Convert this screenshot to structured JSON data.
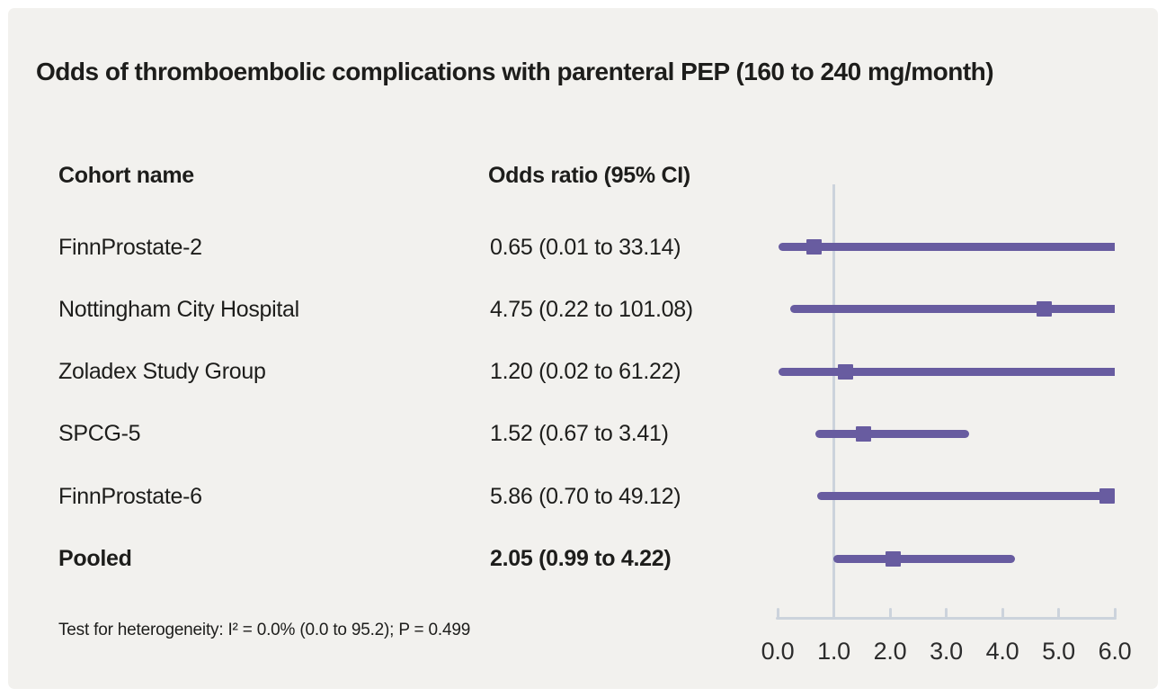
{
  "title": "Odds of thromboembolic complications with parenteral PEP (160 to 240 mg/month)",
  "table": {
    "columns": [
      "Cohort name",
      "Odds ratio (95% CI)"
    ]
  },
  "footnote": "Test for heterogeneity: I² = 0.0% (0.0 to 95.2); P = 0.499",
  "chart_data": {
    "type": "scatter",
    "variant": "forest-plot",
    "title": "Odds of thromboembolic complications with parenteral PEP (160 to 240 mg/month)",
    "xlabel": "",
    "ylabel": "",
    "x_axis": {
      "min": 0,
      "max": 6,
      "ticks": [
        0,
        1,
        2,
        3,
        4,
        5,
        6
      ],
      "tick_labels": [
        "0.0",
        "1.0",
        "2.0",
        "3.0",
        "4.0",
        "5.0",
        "6.0"
      ],
      "reference_line": 1.0
    },
    "rows": [
      {
        "name": "FinnProstate-2",
        "display": "0.65 (0.01 to 33.14)",
        "or": 0.65,
        "ci_low": 0.01,
        "ci_high": 33.14,
        "bold": false
      },
      {
        "name": "Nottingham City Hospital",
        "display": "4.75 (0.22 to 101.08)",
        "or": 4.75,
        "ci_low": 0.22,
        "ci_high": 101.08,
        "bold": false
      },
      {
        "name": "Zoladex Study Group",
        "display": "1.20 (0.02 to 61.22)",
        "or": 1.2,
        "ci_low": 0.02,
        "ci_high": 61.22,
        "bold": false
      },
      {
        "name": "SPCG-5",
        "display": "1.52 (0.67 to 3.41)",
        "or": 1.52,
        "ci_low": 0.67,
        "ci_high": 3.41,
        "bold": false
      },
      {
        "name": "FinnProstate-6",
        "display": "5.86 (0.70 to 49.12)",
        "or": 5.86,
        "ci_low": 0.7,
        "ci_high": 49.12,
        "bold": false
      },
      {
        "name": "Pooled",
        "display": "2.05 (0.99 to 4.22)",
        "or": 2.05,
        "ci_low": 0.99,
        "ci_high": 4.22,
        "bold": true
      }
    ],
    "colors": {
      "marker": "#685ca0",
      "ci_bar": "#685ca0",
      "reference_line": "#ccd3dc",
      "axis": "#ccd3dc",
      "panel_background": "#f2f1ee",
      "text": "#1d1d1b"
    },
    "layout_hints": {
      "grid": false,
      "legend": "none",
      "clipped_at_max": "CI bars extending beyond 6.0 are truncated at the right edge"
    }
  }
}
